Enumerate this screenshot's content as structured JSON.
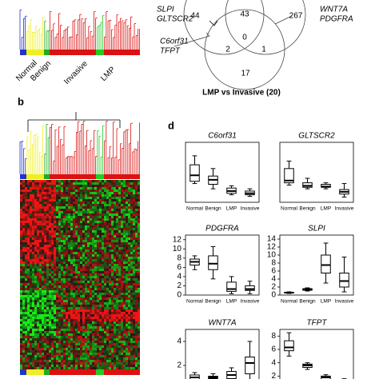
{
  "panel_a": {
    "groups": [
      "Normal",
      "Benign",
      "Invasive",
      "LMP"
    ]
  },
  "venn": {
    "left_genes": [
      "SLPI",
      "GLTSCR2"
    ],
    "right_genes": [
      "WNT7A",
      "PDGFRA"
    ],
    "lower_genes": [
      "C6orf31",
      "TFPT"
    ],
    "counts": {
      "left": "44",
      "left_right": "43",
      "right": "267",
      "center": "0",
      "left_bottom": "2",
      "right_bottom": "1",
      "bottom": "17"
    },
    "caption": "LMP vs Invasive (20)"
  },
  "panel_b": {
    "label": "b"
  },
  "panel_d": {
    "label": "d"
  },
  "chart_data": [
    {
      "type": "box",
      "title": "C6orf31",
      "categories": [
        "Normal",
        "Benign",
        "LMP",
        "Invasive"
      ],
      "ylim": [
        0,
        8
      ],
      "boxes": [
        [
          2.5,
          2.8,
          3.6,
          5,
          6.2
        ],
        [
          1.8,
          2.4,
          3,
          3.5,
          4.5
        ],
        [
          1,
          1.2,
          1.5,
          1.9,
          2.2
        ],
        [
          0.8,
          1,
          1.2,
          1.5,
          1.8
        ]
      ]
    },
    {
      "type": "box",
      "title": "GLTSCR2",
      "categories": [
        "Normal",
        "Benign",
        "LMP",
        "Invasive"
      ],
      "ylim": [
        0,
        8
      ],
      "boxes": [
        [
          2.3,
          2.6,
          2.9,
          4.5,
          5.5
        ],
        [
          1.8,
          2,
          2.2,
          2.6,
          3.2
        ],
        [
          1.8,
          2,
          2.1,
          2.4,
          2.6
        ],
        [
          0.7,
          1.1,
          1.4,
          1.7,
          2.5
        ]
      ]
    },
    {
      "type": "box",
      "title": "PDGFRA",
      "categories": [
        "Normal",
        "Benign",
        "LMP",
        "Invasive"
      ],
      "ylim": [
        0,
        13
      ],
      "yticks": [
        0,
        2,
        4,
        6,
        8,
        10,
        12
      ],
      "boxes": [
        [
          5.5,
          6.5,
          7.2,
          7.8,
          8.5
        ],
        [
          3.5,
          5.5,
          6.8,
          8.5,
          10.5
        ],
        [
          0.3,
          0.8,
          1.3,
          2.8,
          4
        ],
        [
          0.3,
          1,
          1.3,
          2,
          3
        ]
      ]
    },
    {
      "type": "box",
      "title": "SLPI",
      "categories": [
        "Normal",
        "Benign",
        "LMP",
        "Invasive"
      ],
      "ylim": [
        0,
        15
      ],
      "yticks": [
        0,
        2,
        4,
        6,
        8,
        10,
        12,
        14
      ],
      "boxes": [
        [
          0.4,
          0.5,
          0.6,
          0.7,
          0.8
        ],
        [
          1,
          1.2,
          1.5,
          1.6,
          1.8
        ],
        [
          3,
          5.5,
          7.5,
          10,
          13
        ],
        [
          0.8,
          2,
          3.5,
          5.5,
          9.5
        ]
      ]
    },
    {
      "type": "box",
      "title": "WNT7A",
      "ylim": [
        0,
        5
      ],
      "yticks": [
        2,
        4
      ],
      "boxes": [
        [
          0.6,
          0.8,
          1,
          1.2,
          1.4
        ],
        [
          0.7,
          0.9,
          1,
          1.1,
          1.3
        ],
        [
          0.7,
          0.9,
          1.2,
          1.5,
          1.8
        ],
        [
          0.8,
          1.3,
          2.2,
          2.7,
          4
        ]
      ]
    },
    {
      "type": "box",
      "title": "TFPT",
      "ylim": [
        0,
        9
      ],
      "yticks": [
        2,
        4,
        6,
        8
      ],
      "boxes": [
        [
          5,
          5.8,
          6.3,
          7.3,
          8.5
        ],
        [
          3,
          3.3,
          3.6,
          3.8,
          4
        ],
        [
          1,
          1.5,
          1.8,
          2,
          2.2
        ],
        [
          0.3,
          0.6,
          0.9,
          1.2,
          1.6
        ]
      ]
    }
  ]
}
